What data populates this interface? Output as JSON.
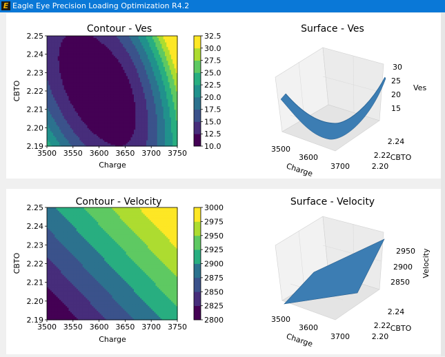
{
  "window": {
    "title": "Eagle Eye Precision Loading Optimization R4.2",
    "icon_letter": "E"
  },
  "chart_data": [
    {
      "id": "contour-ves",
      "type": "contour",
      "title": "Contour - Ves",
      "xlabel": "Charge",
      "ylabel": "CBTO",
      "xlim": [
        3500,
        3750
      ],
      "ylim": [
        2.19,
        2.25
      ],
      "xticks": [
        "3500",
        "3550",
        "3600",
        "3650",
        "3700",
        "3750"
      ],
      "yticks": [
        "2.19",
        "2.20",
        "2.21",
        "2.22",
        "2.23",
        "2.24",
        "2.25"
      ],
      "colorbar_ticks": [
        "10.0",
        "12.5",
        "15.0",
        "17.5",
        "20.0",
        "22.5",
        "25.0",
        "27.5",
        "30.0",
        "32.5"
      ],
      "colorbar_range": [
        10.0,
        32.5
      ]
    },
    {
      "id": "surface-ves",
      "type": "surface3d",
      "title": "Surface - Ves",
      "xlabel": "Charge",
      "ylabel": "CBTO",
      "zlabel": "Ves",
      "xticks": [
        "3500",
        "3600",
        "3700"
      ],
      "yticks": [
        "2.20",
        "2.22",
        "2.24"
      ],
      "zticks": [
        "15",
        "20",
        "25",
        "30"
      ]
    },
    {
      "id": "contour-velocity",
      "type": "contour",
      "title": "Contour - Velocity",
      "xlabel": "Charge",
      "ylabel": "CBTO",
      "xlim": [
        3500,
        3750
      ],
      "ylim": [
        2.19,
        2.25
      ],
      "xticks": [
        "3500",
        "3550",
        "3600",
        "3650",
        "3700",
        "3750"
      ],
      "yticks": [
        "2.19",
        "2.20",
        "2.21",
        "2.22",
        "2.23",
        "2.24",
        "2.25"
      ],
      "colorbar_ticks": [
        "2800",
        "2825",
        "2850",
        "2875",
        "2900",
        "2925",
        "2950",
        "2975",
        "3000"
      ],
      "colorbar_range": [
        2800,
        3000
      ]
    },
    {
      "id": "surface-velocity",
      "type": "surface3d",
      "title": "Surface - Velocity",
      "xlabel": "Charge",
      "ylabel": "CBTO",
      "zlabel": "Velocity",
      "xticks": [
        "3500",
        "3600",
        "3700"
      ],
      "yticks": [
        "2.20",
        "2.22",
        "2.24"
      ],
      "zticks": [
        "2850",
        "2900",
        "2950"
      ]
    }
  ]
}
